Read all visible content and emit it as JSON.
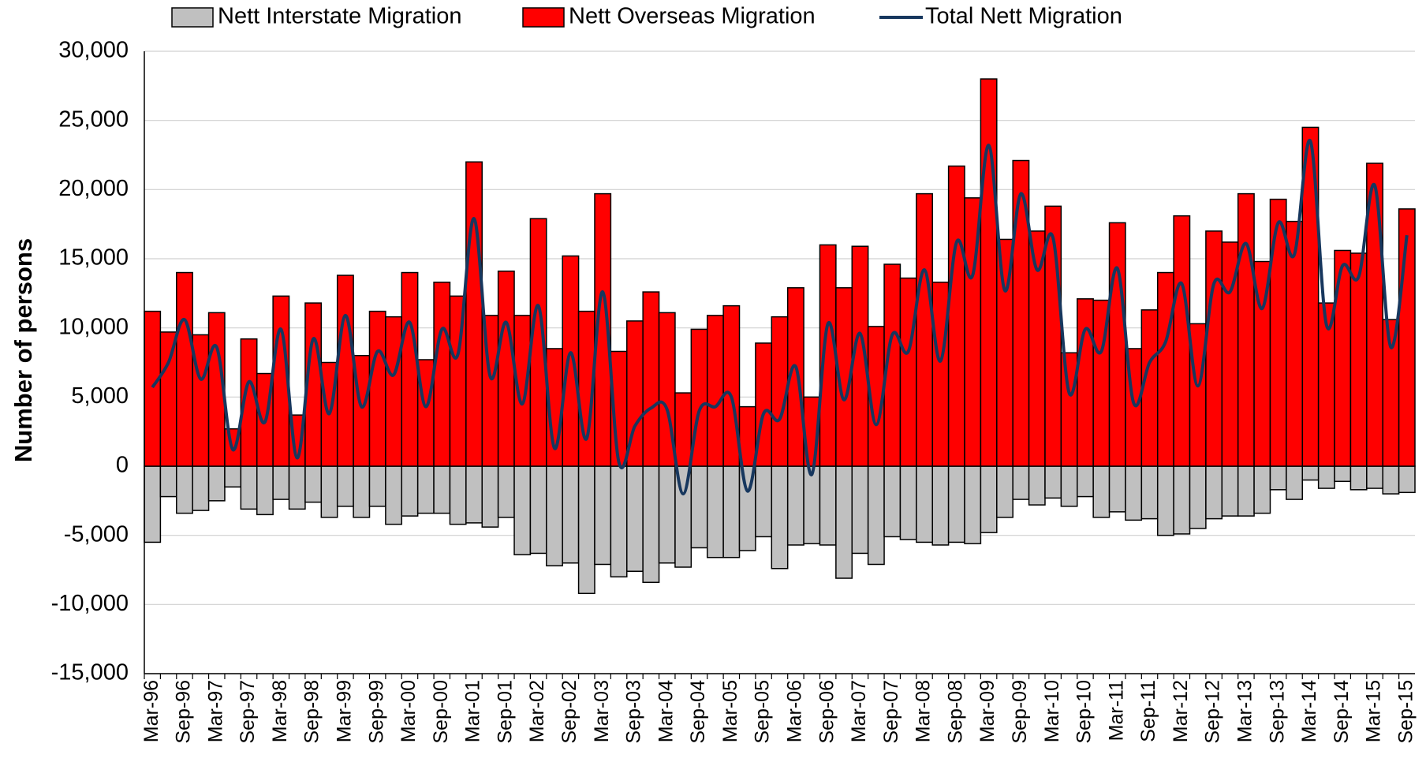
{
  "chart_data": {
    "type": "bar",
    "stacked": true,
    "y_label": "Number of persons",
    "categories": [
      "Mar-96",
      null,
      "Sep-96",
      null,
      "Mar-97",
      null,
      "Sep-97",
      null,
      "Mar-98",
      null,
      "Sep-98",
      null,
      "Mar-99",
      null,
      "Sep-99",
      null,
      "Mar-00",
      null,
      "Sep-00",
      null,
      "Mar-01",
      null,
      "Sep-01",
      null,
      "Mar-02",
      null,
      "Sep-02",
      null,
      "Mar-03",
      null,
      "Sep-03",
      null,
      "Mar-04",
      null,
      "Sep-04",
      null,
      "Mar-05",
      null,
      "Sep-05",
      null,
      "Mar-06",
      null,
      "Sep-06",
      null,
      "Mar-07",
      null,
      "Sep-07",
      null,
      "Mar-08",
      null,
      "Sep-08",
      null,
      "Mar-09",
      null,
      "Sep-09",
      null,
      "Mar-10",
      null,
      "Sep-10",
      null,
      "Mar-11",
      null,
      "Sep-11",
      null,
      "Mar-12",
      null,
      "Sep-12",
      null,
      "Mar-13",
      null,
      "Sep-13",
      null,
      "Mar-14",
      null,
      "Sep-14",
      null,
      "Mar-15",
      null,
      "Sep-15"
    ],
    "series": [
      {
        "name": "Nett Interstate Migration",
        "type": "bar",
        "color": "#c0c0c0",
        "values": [
          -5500,
          -2200,
          -3400,
          -3200,
          -2500,
          -1500,
          -3100,
          -3500,
          -2400,
          -3100,
          -2600,
          -3700,
          -2900,
          -3700,
          -2900,
          -4200,
          -3600,
          -3400,
          -3400,
          -4200,
          -4100,
          -4400,
          -3700,
          -6400,
          -6300,
          -7200,
          -7000,
          -9200,
          -7100,
          -8000,
          -7600,
          -8400,
          -7000,
          -7300,
          -5900,
          -6600,
          -6600,
          -6100,
          -5100,
          -7400,
          -5700,
          -5600,
          -5700,
          -8100,
          -6300,
          -7100,
          -5100,
          -5300,
          -5500,
          -5700,
          -5500,
          -5600,
          -4800,
          -3700,
          -2400,
          -2800,
          -2300,
          -2900,
          -2200,
          -3700,
          -3300,
          -3900,
          -3800,
          -5000,
          -4900,
          -4500,
          -3800,
          -3600,
          -3600,
          -3400,
          -1700,
          -2400,
          -1000,
          -1600,
          -1100,
          -1700,
          -1600,
          -2000,
          -1900
        ]
      },
      {
        "name": "Nett Overseas Migration",
        "type": "bar",
        "color": "#ff0000",
        "values": [
          11200,
          9700,
          14000,
          9500,
          11100,
          2700,
          9200,
          6700,
          12300,
          3700,
          11800,
          7500,
          13800,
          8000,
          11200,
          10800,
          14000,
          7700,
          13300,
          12300,
          22000,
          10900,
          14100,
          10900,
          17900,
          8500,
          15200,
          11200,
          19700,
          8300,
          10500,
          12600,
          11100,
          5300,
          9900,
          10900,
          11600,
          4300,
          8900,
          10800,
          12900,
          5000,
          16000,
          12900,
          15900,
          10100,
          14600,
          13600,
          19700,
          13300,
          21700,
          19400,
          28000,
          16400,
          22100,
          17000,
          18800,
          8200,
          12100,
          12000,
          17600,
          8500,
          11300,
          14000,
          18100,
          10300,
          17000,
          16200,
          19700,
          14800,
          19300,
          17700,
          24500,
          11800,
          15600,
          15400,
          21900,
          10600,
          18600
        ]
      },
      {
        "name": "Total Nett Migration",
        "type": "line",
        "color": "#17375e",
        "values": [
          5700,
          7500,
          10600,
          6300,
          8600,
          1200,
          6100,
          3200,
          9900,
          600,
          9200,
          3800,
          10900,
          4300,
          8300,
          6600,
          10400,
          4300,
          9900,
          8100,
          17900,
          6500,
          10400,
          4500,
          11600,
          1300,
          8200,
          2000,
          12600,
          300,
          2900,
          4200,
          4100,
          -2000,
          4000,
          4300,
          5000,
          -1800,
          3800,
          3400,
          7200,
          -600,
          10300,
          4800,
          9600,
          3000,
          9500,
          8300,
          14200,
          7600,
          16200,
          13800,
          23200,
          12700,
          19700,
          14200,
          16500,
          5300,
          9900,
          8300,
          14300,
          4600,
          7500,
          9000,
          13200,
          5800,
          13200,
          12600,
          16100,
          11400,
          17600,
          15300,
          23500,
          10200,
          14500,
          13700,
          20300,
          8600,
          16700
        ]
      }
    ],
    "ylim": [
      -15000,
      30000
    ],
    "yticks": [
      {
        "value": -15000,
        "label": "-15,000"
      },
      {
        "value": -10000,
        "label": "-10,000"
      },
      {
        "value": -5000,
        "label": "-5,000"
      },
      0,
      {
        "value": 5000,
        "label": "5,000"
      },
      {
        "value": 10000,
        "label": "10,000"
      },
      {
        "value": 15000,
        "label": "15,000"
      },
      {
        "value": 20000,
        "label": "20,000"
      },
      {
        "value": 25000,
        "label": "25,000"
      },
      {
        "value": 30000,
        "label": "30,000"
      }
    ],
    "grid": true,
    "legend": "top"
  }
}
